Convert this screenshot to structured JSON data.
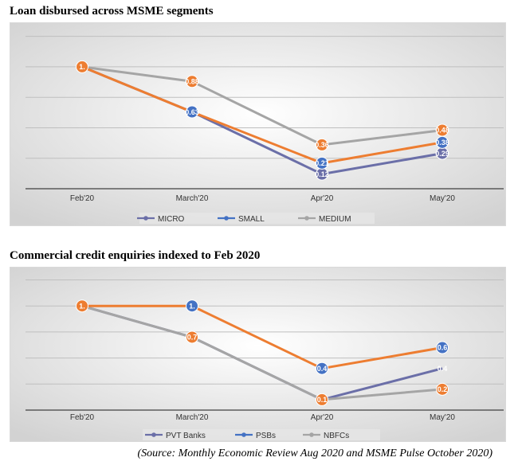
{
  "source": "(Source: Monthly Economic Review Aug 2020 and MSME Pulse October 2020)",
  "chart_data": [
    {
      "type": "line",
      "title": "Loan disbursed across MSME segments",
      "categories": [
        "Feb'20",
        "March'20",
        "Apr'20",
        "May'20"
      ],
      "ylim": [
        0,
        1.2
      ],
      "grid": true,
      "legend_position": "bottom",
      "series": [
        {
          "name": "MICRO",
          "color": "#6b6fa8",
          "values": [
            1.0,
            0.63,
            0.12,
            0.29
          ],
          "labels": [
            "",
            "",
            "0.12",
            "0.29"
          ]
        },
        {
          "name": "SMALL",
          "color": "#4472c4",
          "values": [
            1.0,
            0.63,
            0.21,
            0.38
          ],
          "labels": [
            "",
            "0.63",
            "0.21",
            "0.38"
          ]
        },
        {
          "name": "MEDIUM",
          "color": "#a5a5a5",
          "values": [
            1.0,
            0.88,
            0.36,
            0.48
          ],
          "labels": [
            "",
            "",
            "",
            ""
          ]
        }
      ],
      "lines_order": [
        "MICRO",
        "MEDIUM",
        "SMALL"
      ],
      "markers": [
        {
          "series": "MICRO",
          "index": 2,
          "color": "#6b6fa8",
          "label": "0.12"
        },
        {
          "series": "MICRO",
          "index": 3,
          "color": "#6b6fa8",
          "label": "0.29"
        },
        {
          "series": "SMALL",
          "index": 1,
          "color": "#4472c4",
          "label": "0.63"
        },
        {
          "series": "SMALL",
          "index": 2,
          "color": "#4472c4",
          "label": "0.21"
        },
        {
          "series": "SMALL",
          "index": 3,
          "color": "#4472c4",
          "label": "0.38"
        },
        {
          "series": "MEDIUM",
          "index": 0,
          "color": "#ed7d31",
          "label": "1."
        },
        {
          "series": "MEDIUM",
          "index": 1,
          "color": "#ed7d31",
          "label": "0.88"
        },
        {
          "series": "MEDIUM",
          "index": 2,
          "color": "#ed7d31",
          "label": "0.36"
        },
        {
          "series": "MEDIUM",
          "index": 3,
          "color": "#ed7d31",
          "label": "0.48"
        }
      ],
      "line_colors": {
        "MICRO": "#6b6fa8",
        "SMALL": "#ed7d31",
        "MEDIUM": "#a5a5a5"
      }
    },
    {
      "type": "line",
      "title": "Commercial credit enquiries indexed to Feb 2020",
      "categories": [
        "Feb'20",
        "March'20",
        "Apr'20",
        "May'20"
      ],
      "ylim": [
        0,
        1.2
      ],
      "grid": true,
      "legend_position": "bottom",
      "series": [
        {
          "name": "PVT Banks",
          "color": "#6b6fa8",
          "values": [
            1.0,
            0.7,
            0.1,
            0.4
          ]
        },
        {
          "name": "PSBs",
          "color": "#4472c4",
          "values": [
            1.0,
            1.0,
            0.4,
            0.6
          ]
        },
        {
          "name": "NBFCs",
          "color": "#a5a5a5",
          "values": [
            1.0,
            0.7,
            0.1,
            0.2
          ]
        }
      ],
      "lines_order": [
        "PVT Banks",
        "NBFCs",
        "PSBs"
      ],
      "markers": [
        {
          "series": "PSBs",
          "index": 2,
          "color": "#4472c4",
          "label": "0.4"
        },
        {
          "series": "PSBs",
          "index": 3,
          "color": "#4472c4",
          "label": "0.6"
        },
        {
          "series": "NBFCs",
          "index": 0,
          "color": "#ed7d31",
          "label": "1."
        },
        {
          "series": "PSBs",
          "index": 1,
          "color": "#4472c4",
          "label": "1."
        },
        {
          "series": "NBFCs",
          "index": 1,
          "color": "#ed7d31",
          "label": "0.7"
        },
        {
          "series": "NBFCs",
          "index": 2,
          "color": "#ed7d31",
          "label": "0.1"
        },
        {
          "series": "NBFCs",
          "index": 3,
          "color": "#ed7d31",
          "label": "0.2"
        },
        {
          "series": "PVT Banks",
          "index": 3,
          "color": "none",
          "label": "0.4"
        }
      ],
      "line_colors": {
        "PVT Banks": "#6b6fa8",
        "PSBs": "#ed7d31",
        "NBFCs": "#a5a5a5"
      }
    }
  ]
}
